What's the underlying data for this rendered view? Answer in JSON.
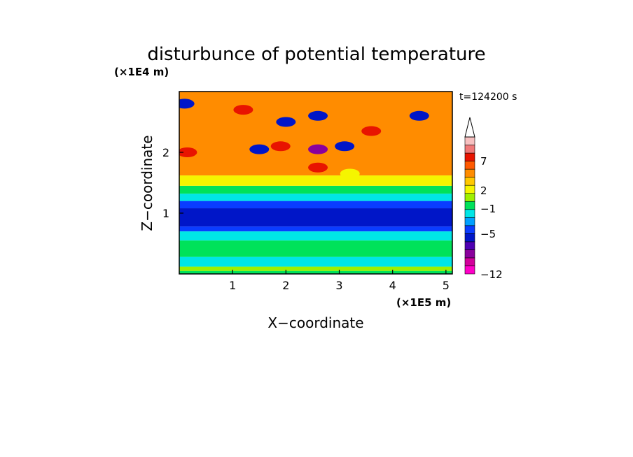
{
  "chart_data": {
    "type": "heatmap",
    "title": "disturbunce of potential temperature",
    "xlabel": "X−coordinate",
    "ylabel": "Z−coordinate",
    "x_scale_label": "(×1E5 m)",
    "y_scale_label": "(×1E4 m)",
    "time_label": "t=124200 s",
    "xlim": [
      0,
      5.12
    ],
    "ylim": [
      0,
      3.0
    ],
    "x_ticks": [
      "1",
      "2",
      "3",
      "4",
      "5"
    ],
    "y_ticks": [
      "1",
      "2"
    ],
    "colorbar": {
      "tick_labels": [
        "7",
        "2",
        "−1",
        "−5",
        "−12"
      ],
      "extend_max_triangle": true,
      "colors": [
        "#ff00c8",
        "#d2009b",
        "#8a009c",
        "#4e00b2",
        "#0016c8",
        "#0a3cff",
        "#00a0ff",
        "#00e6e6",
        "#00e25a",
        "#9ef000",
        "#f5f500",
        "#ffc800",
        "#ff8c00",
        "#ff5a00",
        "#e81400",
        "#f07878",
        "#f7c0c0"
      ]
    },
    "bands": [
      {
        "z_from": 0.0,
        "z_to": 0.05,
        "level": "green"
      },
      {
        "z_from": 0.05,
        "z_to": 0.12,
        "level": "lightgreen"
      },
      {
        "z_from": 0.12,
        "z_to": 0.28,
        "level": "cyan"
      },
      {
        "z_from": 0.28,
        "z_to": 0.55,
        "level": "green"
      },
      {
        "z_from": 0.55,
        "z_to": 0.7,
        "level": "cyan"
      },
      {
        "z_from": 0.7,
        "z_to": 0.78,
        "level": "blue"
      },
      {
        "z_from": 0.78,
        "z_to": 1.08,
        "level": "darkblue"
      },
      {
        "z_from": 1.08,
        "z_to": 1.2,
        "level": "blue"
      },
      {
        "z_from": 1.2,
        "z_to": 1.32,
        "level": "cyan"
      },
      {
        "z_from": 1.32,
        "z_to": 1.45,
        "level": "green"
      },
      {
        "z_from": 1.45,
        "z_to": 1.62,
        "level": "yellow"
      },
      {
        "z_from": 1.62,
        "z_to": 3.0,
        "level": "orange"
      }
    ],
    "features": [
      {
        "x": 2.6,
        "z": 2.05,
        "level": "purple"
      },
      {
        "x": 2.0,
        "z": 2.5,
        "level": "darkblue"
      },
      {
        "x": 2.6,
        "z": 2.6,
        "level": "darkblue"
      },
      {
        "x": 3.1,
        "z": 2.1,
        "level": "darkblue"
      },
      {
        "x": 1.2,
        "z": 2.7,
        "level": "red"
      },
      {
        "x": 1.5,
        "z": 2.05,
        "level": "darkblue"
      },
      {
        "x": 1.9,
        "z": 2.1,
        "level": "red"
      },
      {
        "x": 3.6,
        "z": 2.35,
        "level": "red"
      },
      {
        "x": 0.1,
        "z": 2.8,
        "level": "darkblue"
      },
      {
        "x": 4.5,
        "z": 2.6,
        "level": "darkblue"
      },
      {
        "x": 0.15,
        "z": 2.0,
        "level": "red"
      },
      {
        "x": 2.6,
        "z": 1.75,
        "level": "red"
      },
      {
        "x": 3.2,
        "z": 1.65,
        "level": "yellow"
      }
    ]
  }
}
